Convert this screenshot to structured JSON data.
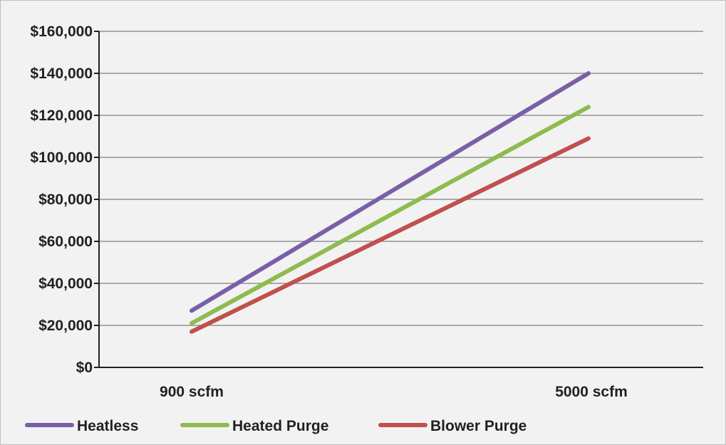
{
  "chart_data": {
    "type": "line",
    "title": "",
    "xlabel": "",
    "ylabel": "",
    "categories": [
      "900 scfm",
      "5000 scfm"
    ],
    "ylim": [
      0,
      160000
    ],
    "y_ticks": [
      "$0",
      "$20,000",
      "$40,000",
      "$60,000",
      "$80,000",
      "$100,000",
      "$120,000",
      "$140,000",
      "$160,000"
    ],
    "grid": true,
    "legend_position": "bottom",
    "series": [
      {
        "name": "Heatless",
        "values": [
          27000,
          140000
        ],
        "color": "#7a5fa8"
      },
      {
        "name": "Heated Purge",
        "values": [
          21000,
          124000
        ],
        "color": "#8dbb4f"
      },
      {
        "name": "Blower Purge",
        "values": [
          17000,
          109000
        ],
        "color": "#c0504d"
      }
    ]
  }
}
